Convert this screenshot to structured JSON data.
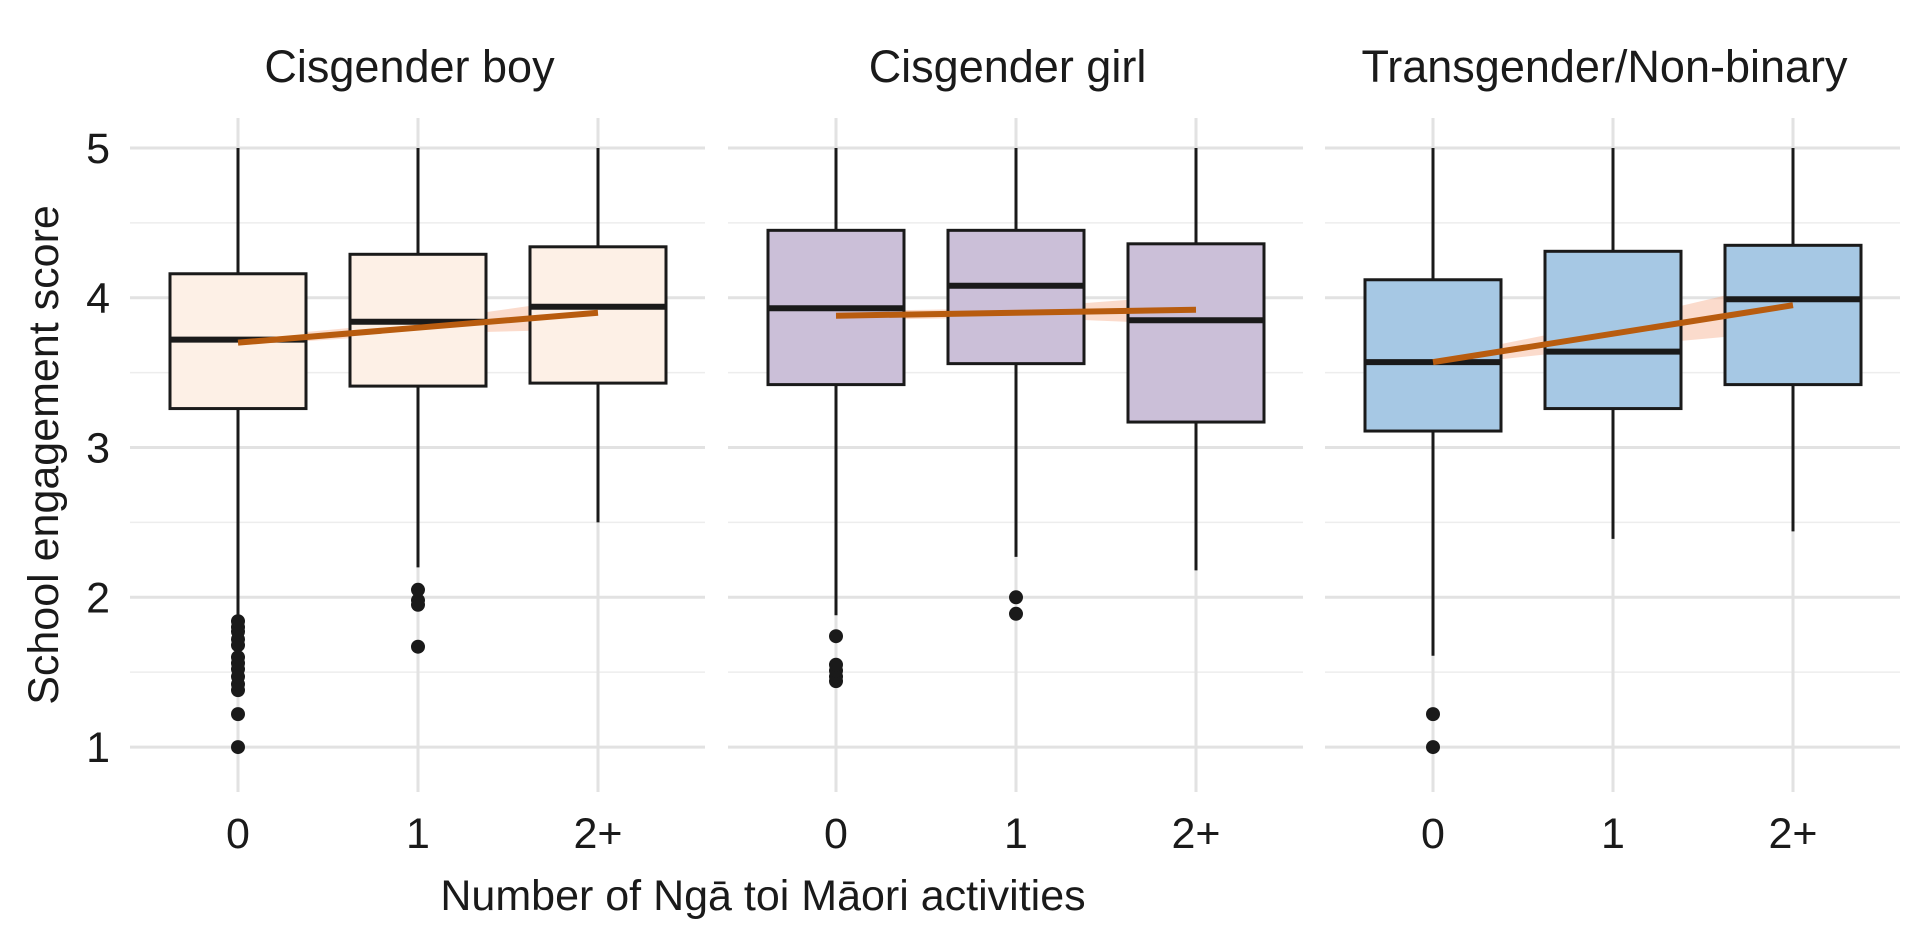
{
  "chart_data": {
    "type": "boxplot",
    "xlabel": "Number of Ngā toi Māori activities",
    "ylabel": "School engagement score",
    "categories": [
      "0",
      "1",
      "2+"
    ],
    "ylim": [
      0.7,
      5.2
    ],
    "yticks": [
      1,
      2,
      3,
      4,
      5
    ],
    "grid": true,
    "trend_color": "#b85c0f",
    "panels": [
      {
        "title": "Cisgender boy",
        "fill": "#fdf0e6",
        "boxes": [
          {
            "category": "0",
            "whisker_low": 1.86,
            "q1": 3.26,
            "median": 3.72,
            "q3": 4.16,
            "whisker_high": 5.0,
            "outliers": [
              1.0,
              1.22,
              1.38,
              1.42,
              1.47,
              1.52,
              1.56,
              1.6,
              1.68,
              1.72,
              1.77,
              1.8,
              1.84
            ]
          },
          {
            "category": "1",
            "whisker_low": 2.2,
            "q1": 3.41,
            "median": 3.84,
            "q3": 4.29,
            "whisker_high": 5.0,
            "outliers": [
              1.67,
              1.95,
              1.98,
              2.05
            ]
          },
          {
            "category": "2+",
            "whisker_low": 2.5,
            "q1": 3.43,
            "median": 3.94,
            "q3": 4.34,
            "whisker_high": 5.0,
            "outliers": []
          }
        ],
        "trend": {
          "y": [
            3.7,
            3.8,
            3.9
          ],
          "lower": [
            3.68,
            3.76,
            3.79
          ],
          "upper": [
            3.73,
            3.84,
            4.01
          ]
        }
      },
      {
        "title": "Cisgender girl",
        "fill": "#cbbfd8",
        "boxes": [
          {
            "category": "0",
            "whisker_low": 1.88,
            "q1": 3.42,
            "median": 3.93,
            "q3": 4.45,
            "whisker_high": 5.0,
            "outliers": [
              1.44,
              1.47,
              1.51,
              1.55,
              1.74
            ]
          },
          {
            "category": "1",
            "whisker_low": 2.27,
            "q1": 3.56,
            "median": 4.08,
            "q3": 4.45,
            "whisker_high": 5.0,
            "outliers": [
              1.89,
              2.0
            ]
          },
          {
            "category": "2+",
            "whisker_low": 2.18,
            "q1": 3.17,
            "median": 3.85,
            "q3": 4.36,
            "whisker_high": 5.0,
            "outliers": []
          }
        ],
        "trend": {
          "y": [
            3.88,
            3.9,
            3.92
          ],
          "lower": [
            3.85,
            3.87,
            3.82
          ],
          "upper": [
            3.91,
            3.93,
            4.02
          ]
        }
      },
      {
        "title": "Transgender/Non-binary",
        "fill": "#a6c8e4",
        "boxes": [
          {
            "category": "0",
            "whisker_low": 1.61,
            "q1": 3.11,
            "median": 3.57,
            "q3": 4.12,
            "whisker_high": 5.0,
            "outliers": [
              1.0,
              1.22
            ]
          },
          {
            "category": "1",
            "whisker_low": 2.39,
            "q1": 3.26,
            "median": 3.64,
            "q3": 4.31,
            "whisker_high": 5.0,
            "outliers": []
          },
          {
            "category": "2+",
            "whisker_low": 2.44,
            "q1": 3.42,
            "median": 3.99,
            "q3": 4.35,
            "whisker_high": 5.0,
            "outliers": []
          }
        ],
        "trend": {
          "y": [
            3.57,
            3.76,
            3.95
          ],
          "lower": [
            3.54,
            3.67,
            3.78
          ],
          "upper": [
            3.6,
            3.84,
            4.12
          ]
        }
      }
    ]
  }
}
